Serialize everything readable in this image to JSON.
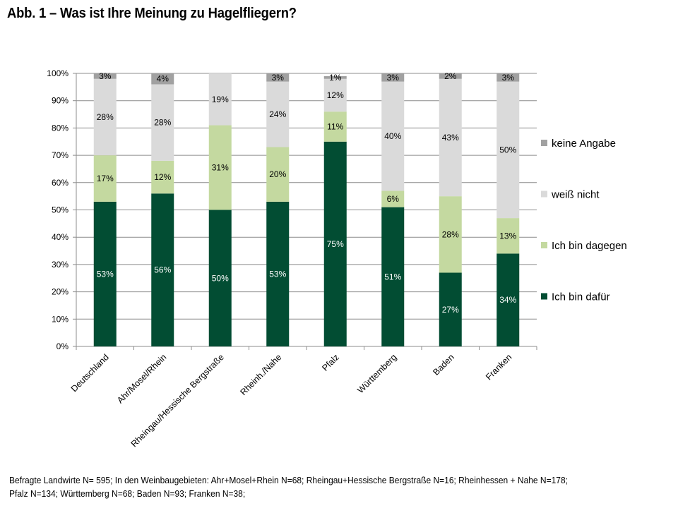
{
  "title": "Abb. 1 – Was ist Ihre Meinung zu Hagelfliegern?",
  "footer": {
    "line1": "Befragte Landwirte N= 595; In den Weinbaugebieten: Ahr+Mosel+Rhein N=68; Rheingau+Hessische Bergstraße N=16; Rheinhessen + Nahe N=178;",
    "line2": "Pfalz N=134; Württemberg N=68; Baden N=93; Franken N=38;"
  },
  "chart_data": {
    "type": "bar",
    "stacked": true,
    "percent_stacked": true,
    "categories": [
      "Deutschland",
      "Ahr/Mosel/Rhein",
      "Rheingau/Hessische Bergstraße",
      "Rheinh./Nahe",
      "Pfalz",
      "Württemberg",
      "Baden",
      "Franken"
    ],
    "series": [
      {
        "name": "Ich bin dafür",
        "color": "#024d33",
        "label_color": "#ffffff",
        "values": [
          53,
          56,
          50,
          53,
          75,
          51,
          27,
          34
        ],
        "labels": [
          "53%",
          "56%",
          "50%",
          "53%",
          "75%",
          "51%",
          "27%",
          "34%"
        ]
      },
      {
        "name": "Ich bin dagegen",
        "color": "#c4d9a0",
        "label_color": "#000000",
        "values": [
          17,
          12,
          31,
          20,
          11,
          6,
          28,
          13
        ],
        "labels": [
          "17%",
          "12%",
          "31%",
          "20%",
          "11%",
          "6%",
          "28%",
          "13%"
        ]
      },
      {
        "name": "weiß nicht",
        "color": "#dadada",
        "label_color": "#000000",
        "values": [
          28,
          28,
          19,
          24,
          12,
          40,
          43,
          50
        ],
        "labels": [
          "28%",
          "28%",
          "19%",
          "24%",
          "12%",
          "40%",
          "43%",
          "50%"
        ]
      },
      {
        "name": "keine Angabe",
        "color": "#a1a1a1",
        "label_color": "#000000",
        "values": [
          3,
          4,
          0,
          3,
          1,
          3,
          2,
          3
        ],
        "labels": [
          "3%",
          "4%",
          "",
          "3%",
          "1%",
          "3%",
          "2%",
          "3%"
        ]
      }
    ],
    "ylim": [
      0,
      100
    ],
    "yticks": [
      "0%",
      "10%",
      "20%",
      "30%",
      "40%",
      "50%",
      "60%",
      "70%",
      "80%",
      "90%",
      "100%"
    ],
    "grid": true,
    "legend_position": "right",
    "legend_order": [
      "keine Angabe",
      "weiß nicht",
      "Ich bin dagegen",
      "Ich bin dafür"
    ]
  }
}
